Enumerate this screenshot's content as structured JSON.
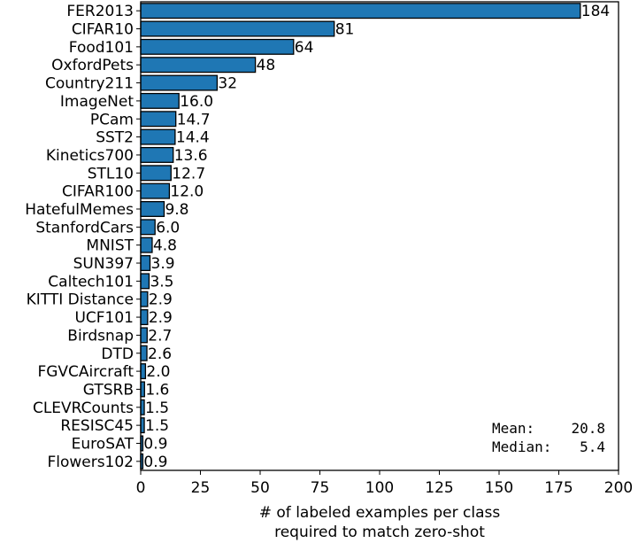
{
  "chart_data": {
    "type": "bar",
    "orientation": "horizontal",
    "categories": [
      "FER2013",
      "CIFAR10",
      "Food101",
      "OxfordPets",
      "Country211",
      "ImageNet",
      "PCam",
      "SST2",
      "Kinetics700",
      "STL10",
      "CIFAR100",
      "HatefulMemes",
      "StanfordCars",
      "MNIST",
      "SUN397",
      "Caltech101",
      "KITTI Distance",
      "UCF101",
      "Birdsnap",
      "DTD",
      "FGVCAircraft",
      "GTSRB",
      "CLEVRCounts",
      "RESISC45",
      "EuroSAT",
      "Flowers102"
    ],
    "values": [
      184,
      81,
      64,
      48,
      32,
      16.0,
      14.7,
      14.4,
      13.6,
      12.7,
      12.0,
      9.8,
      6.0,
      4.8,
      3.9,
      3.5,
      2.9,
      2.9,
      2.7,
      2.6,
      2.0,
      1.6,
      1.5,
      1.5,
      0.9,
      0.9
    ],
    "value_labels": [
      "184",
      "81",
      "64",
      "48",
      "32",
      "16.0",
      "14.7",
      "14.4",
      "13.6",
      "12.7",
      "12.0",
      "9.8",
      "6.0",
      "4.8",
      "3.9",
      "3.5",
      "2.9",
      "2.9",
      "2.7",
      "2.6",
      "2.0",
      "1.6",
      "1.5",
      "1.5",
      "0.9",
      "0.9"
    ],
    "xlim": [
      0,
      200
    ],
    "xticks": [
      0,
      25,
      50,
      75,
      100,
      125,
      150,
      175,
      200
    ],
    "xlabel_lines": [
      "# of labeled examples per class",
      "required to match zero-shot"
    ],
    "ylabel": "",
    "title": "",
    "grid": false,
    "bar_color": "#1f77b4",
    "edge_color": "#000000",
    "annotation": {
      "mean_label": "Mean:",
      "mean_value": "20.8",
      "median_label": "Median:",
      "median_value": "5.4"
    }
  }
}
